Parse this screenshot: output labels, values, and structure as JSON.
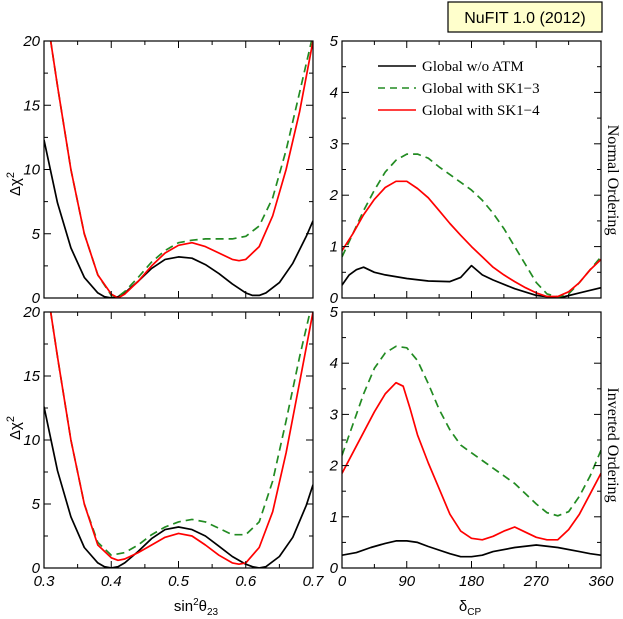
{
  "badge": "NuFIT 1.0 (2012)",
  "labels": {
    "left_ylabel": "Δχ",
    "left_ylabel_sup": "2",
    "left_xlabel_main": "sin",
    "left_xlabel_sup": "2",
    "left_xlabel_theta": "θ",
    "left_xlabel_sub": "23",
    "right_xlabel_main": "δ",
    "right_xlabel_sub": "CP",
    "top_right_side": "Normal Ordering",
    "bottom_right_side": "Inverted Ordering"
  },
  "colors": {
    "global_wo_atm": "#000000",
    "sk13": "#228b22",
    "sk14": "#ff0000"
  },
  "legend": [
    {
      "name": "Global w/o ATM",
      "style": "solid",
      "color": "#000000"
    },
    {
      "name": "Global with SK1−3",
      "style": "dashed",
      "color": "#228b22"
    },
    {
      "name": "Global with SK1−4",
      "style": "solid",
      "color": "#ff0000"
    }
  ],
  "chart_data": [
    {
      "id": "top-left",
      "type": "line",
      "xlim": [
        0.3,
        0.7
      ],
      "ylim": [
        0,
        20
      ],
      "xticks": [
        0.3,
        0.4,
        0.5,
        0.6,
        0.7
      ],
      "xtick_labels": [],
      "yticks": [
        0,
        5,
        10,
        15,
        20
      ],
      "ytick_labels": [
        "0",
        "5",
        "10",
        "15",
        "20"
      ],
      "series": [
        {
          "name": "Global w/o ATM",
          "color": "#000000",
          "dash": false,
          "x": [
            0.3,
            0.32,
            0.34,
            0.36,
            0.38,
            0.39,
            0.4,
            0.41,
            0.42,
            0.44,
            0.46,
            0.48,
            0.5,
            0.52,
            0.54,
            0.56,
            0.58,
            0.6,
            0.61,
            0.62,
            0.63,
            0.65,
            0.67,
            0.69,
            0.7
          ],
          "y": [
            12.3,
            7.4,
            3.9,
            1.6,
            0.4,
            0.1,
            0.0,
            0.1,
            0.4,
            1.3,
            2.3,
            3.0,
            3.2,
            3.1,
            2.6,
            1.9,
            1.1,
            0.4,
            0.2,
            0.2,
            0.4,
            1.2,
            2.7,
            4.8,
            6.0
          ]
        },
        {
          "name": "Global with SK1−3",
          "color": "#228b22",
          "dash": true,
          "x": [
            0.3,
            0.31,
            0.32,
            0.34,
            0.36,
            0.38,
            0.4,
            0.41,
            0.42,
            0.44,
            0.46,
            0.48,
            0.5,
            0.52,
            0.54,
            0.56,
            0.58,
            0.6,
            0.62,
            0.64,
            0.66,
            0.68,
            0.7
          ],
          "y": [
            22.0,
            20.0,
            16.5,
            10.0,
            5.0,
            1.8,
            0.2,
            0.1,
            0.5,
            1.6,
            2.8,
            3.7,
            4.3,
            4.5,
            4.6,
            4.6,
            4.6,
            4.8,
            5.6,
            7.8,
            11.5,
            16.0,
            20.5
          ]
        },
        {
          "name": "Global with SK1−4",
          "color": "#ff0000",
          "dash": false,
          "x": [
            0.3,
            0.31,
            0.32,
            0.34,
            0.36,
            0.38,
            0.4,
            0.41,
            0.42,
            0.44,
            0.46,
            0.48,
            0.5,
            0.52,
            0.54,
            0.56,
            0.58,
            0.59,
            0.6,
            0.62,
            0.64,
            0.66,
            0.68,
            0.7
          ],
          "y": [
            22.0,
            20.0,
            16.5,
            10.0,
            5.0,
            1.8,
            0.3,
            0.0,
            0.3,
            1.3,
            2.5,
            3.5,
            4.1,
            4.3,
            4.0,
            3.5,
            3.0,
            2.9,
            3.0,
            4.0,
            6.4,
            10.0,
            14.5,
            20.0
          ]
        }
      ]
    },
    {
      "id": "top-right",
      "type": "line",
      "xlim": [
        0,
        360
      ],
      "ylim": [
        0,
        5
      ],
      "xticks": [
        0,
        90,
        180,
        270,
        360
      ],
      "xtick_labels": [],
      "yticks": [
        0,
        1,
        2,
        3,
        4,
        5
      ],
      "ytick_labels": [
        "0",
        "1",
        "2",
        "3",
        "4",
        "5"
      ],
      "side_label": "Normal Ordering",
      "series": [
        {
          "name": "Global w/o ATM",
          "color": "#000000",
          "dash": false,
          "x": [
            0,
            10,
            20,
            30,
            45,
            60,
            90,
            120,
            150,
            165,
            180,
            195,
            210,
            240,
            270,
            290,
            300,
            310,
            330,
            345,
            360
          ],
          "y": [
            0.25,
            0.45,
            0.55,
            0.6,
            0.5,
            0.45,
            0.38,
            0.33,
            0.32,
            0.4,
            0.63,
            0.45,
            0.35,
            0.18,
            0.05,
            0.02,
            0.0,
            0.03,
            0.1,
            0.15,
            0.2
          ]
        },
        {
          "name": "Global with SK1−3",
          "color": "#228b22",
          "dash": true,
          "x": [
            0,
            15,
            30,
            45,
            60,
            75,
            90,
            105,
            120,
            135,
            150,
            165,
            180,
            195,
            210,
            225,
            240,
            255,
            270,
            285,
            300,
            315,
            330,
            345,
            360
          ],
          "y": [
            0.8,
            1.25,
            1.7,
            2.1,
            2.45,
            2.68,
            2.8,
            2.8,
            2.72,
            2.55,
            2.4,
            2.25,
            2.1,
            1.9,
            1.65,
            1.35,
            1.0,
            0.65,
            0.3,
            0.08,
            0.02,
            0.08,
            0.3,
            0.55,
            0.8
          ]
        },
        {
          "name": "Global with SK1−4",
          "color": "#ff0000",
          "dash": false,
          "x": [
            0,
            15,
            30,
            45,
            60,
            75,
            90,
            105,
            120,
            135,
            150,
            165,
            180,
            195,
            210,
            225,
            240,
            255,
            270,
            285,
            300,
            315,
            330,
            345,
            360
          ],
          "y": [
            0.92,
            1.25,
            1.62,
            1.92,
            2.15,
            2.27,
            2.27,
            2.13,
            1.95,
            1.7,
            1.45,
            1.22,
            1.0,
            0.8,
            0.6,
            0.45,
            0.32,
            0.2,
            0.1,
            0.03,
            0.03,
            0.12,
            0.3,
            0.55,
            0.75
          ]
        }
      ]
    },
    {
      "id": "bottom-left",
      "type": "line",
      "xlim": [
        0.3,
        0.7
      ],
      "ylim": [
        0,
        20
      ],
      "xticks": [
        0.3,
        0.4,
        0.5,
        0.6,
        0.7
      ],
      "xtick_labels": [
        "0.3",
        "0.4",
        "0.5",
        "0.6",
        "0.7"
      ],
      "yticks": [
        0,
        5,
        10,
        15,
        20
      ],
      "ytick_labels": [
        "0",
        "5",
        "10",
        "15",
        "20"
      ],
      "series": [
        {
          "name": "Global w/o ATM",
          "color": "#000000",
          "dash": false,
          "x": [
            0.3,
            0.32,
            0.34,
            0.36,
            0.38,
            0.39,
            0.4,
            0.41,
            0.42,
            0.44,
            0.46,
            0.48,
            0.5,
            0.52,
            0.54,
            0.56,
            0.58,
            0.6,
            0.61,
            0.62,
            0.63,
            0.65,
            0.67,
            0.69,
            0.7
          ],
          "y": [
            12.6,
            7.6,
            4.0,
            1.6,
            0.4,
            0.1,
            0.0,
            0.1,
            0.4,
            1.3,
            2.3,
            3.0,
            3.2,
            3.0,
            2.5,
            1.7,
            0.9,
            0.3,
            0.1,
            0.0,
            0.1,
            0.9,
            2.4,
            4.9,
            6.5
          ]
        },
        {
          "name": "Global with SK1−3",
          "color": "#228b22",
          "dash": true,
          "x": [
            0.3,
            0.31,
            0.32,
            0.34,
            0.36,
            0.38,
            0.4,
            0.42,
            0.44,
            0.46,
            0.48,
            0.5,
            0.52,
            0.54,
            0.56,
            0.58,
            0.6,
            0.62,
            0.64,
            0.66,
            0.68,
            0.7
          ],
          "y": [
            22.0,
            20.0,
            16.5,
            10.0,
            5.0,
            2.0,
            1.0,
            1.2,
            1.8,
            2.6,
            3.2,
            3.6,
            3.8,
            3.6,
            3.1,
            2.6,
            2.6,
            3.6,
            6.8,
            11.5,
            16.5,
            21.0
          ]
        },
        {
          "name": "Global with SK1−4",
          "color": "#ff0000",
          "dash": false,
          "x": [
            0.3,
            0.31,
            0.32,
            0.34,
            0.36,
            0.38,
            0.4,
            0.41,
            0.42,
            0.44,
            0.46,
            0.48,
            0.5,
            0.52,
            0.54,
            0.56,
            0.58,
            0.59,
            0.6,
            0.62,
            0.64,
            0.66,
            0.68,
            0.7
          ],
          "y": [
            22.0,
            20.0,
            16.5,
            10.0,
            5.0,
            1.8,
            0.8,
            0.6,
            0.7,
            1.2,
            1.8,
            2.4,
            2.7,
            2.5,
            1.8,
            1.0,
            0.4,
            0.3,
            0.4,
            1.6,
            4.4,
            9.0,
            14.5,
            20.0
          ]
        }
      ]
    },
    {
      "id": "bottom-right",
      "type": "line",
      "xlim": [
        0,
        360
      ],
      "ylim": [
        0,
        5
      ],
      "xticks": [
        0,
        90,
        180,
        270,
        360
      ],
      "xtick_labels": [
        "0",
        "90",
        "180",
        "270",
        "360"
      ],
      "yticks": [
        0,
        1,
        2,
        3,
        4,
        5
      ],
      "ytick_labels": [
        "0",
        "1",
        "2",
        "3",
        "4",
        "5"
      ],
      "side_label": "Inverted Ordering",
      "series": [
        {
          "name": "Global w/o ATM",
          "color": "#000000",
          "dash": false,
          "x": [
            0,
            20,
            40,
            60,
            75,
            90,
            105,
            120,
            150,
            165,
            180,
            195,
            210,
            240,
            270,
            300,
            330,
            345,
            360
          ],
          "y": [
            0.25,
            0.3,
            0.4,
            0.48,
            0.53,
            0.53,
            0.5,
            0.42,
            0.28,
            0.22,
            0.22,
            0.25,
            0.32,
            0.4,
            0.45,
            0.4,
            0.32,
            0.28,
            0.25
          ]
        },
        {
          "name": "Global with SK1−3",
          "color": "#228b22",
          "dash": true,
          "x": [
            0,
            15,
            30,
            45,
            60,
            75,
            90,
            105,
            120,
            135,
            150,
            165,
            180,
            195,
            210,
            225,
            240,
            255,
            270,
            285,
            300,
            315,
            330,
            345,
            360
          ],
          "y": [
            2.2,
            2.8,
            3.4,
            3.9,
            4.2,
            4.33,
            4.3,
            4.05,
            3.6,
            3.1,
            2.7,
            2.4,
            2.25,
            2.1,
            1.95,
            1.8,
            1.65,
            1.45,
            1.25,
            1.08,
            1.02,
            1.1,
            1.4,
            1.8,
            2.3
          ]
        },
        {
          "name": "Global with SK1−4",
          "color": "#ff0000",
          "dash": false,
          "x": [
            0,
            15,
            30,
            45,
            60,
            75,
            85,
            95,
            105,
            120,
            135,
            150,
            165,
            180,
            195,
            210,
            225,
            240,
            255,
            270,
            285,
            300,
            315,
            330,
            345,
            360
          ],
          "y": [
            1.85,
            2.25,
            2.65,
            3.05,
            3.4,
            3.62,
            3.55,
            3.1,
            2.6,
            2.05,
            1.55,
            1.05,
            0.72,
            0.58,
            0.55,
            0.62,
            0.72,
            0.8,
            0.7,
            0.6,
            0.55,
            0.55,
            0.75,
            1.05,
            1.45,
            1.85
          ]
        }
      ]
    }
  ]
}
